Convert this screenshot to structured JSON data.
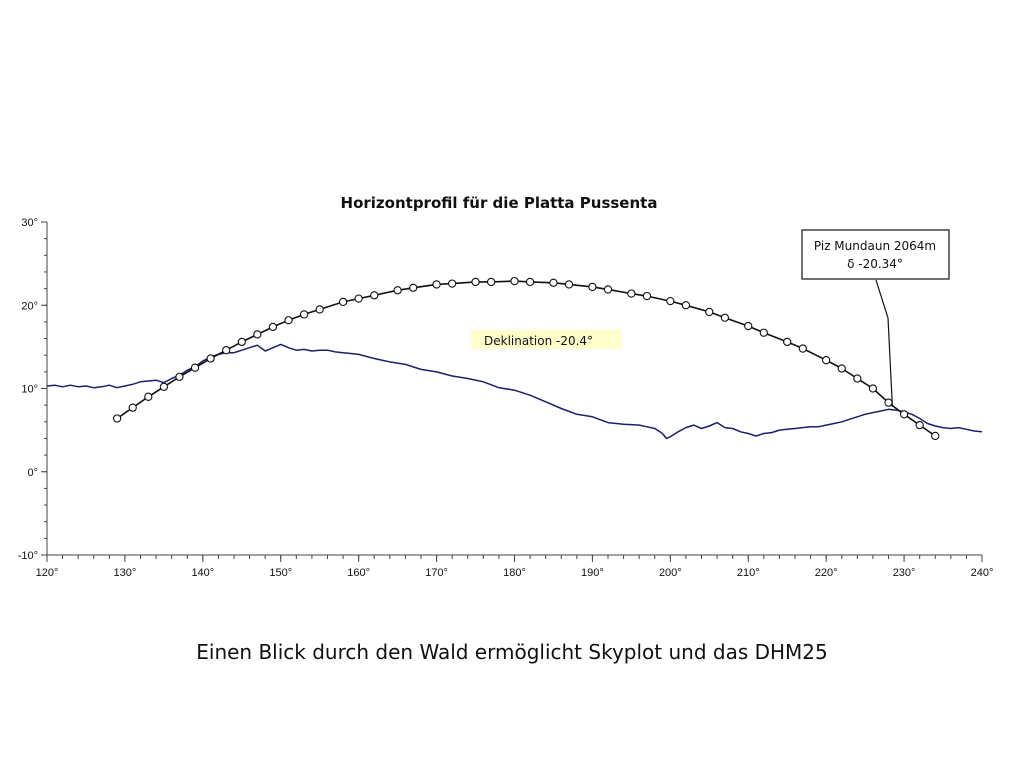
{
  "chart_data": {
    "type": "line",
    "title": "Horizontprofil für die Platta Pussenta",
    "xlabel": "",
    "ylabel": "",
    "xlim": [
      120,
      240
    ],
    "ylim": [
      -10,
      30
    ],
    "x_ticks": [
      "120°",
      "130°",
      "140°",
      "150°",
      "160°",
      "170°",
      "180°",
      "190°",
      "200°",
      "210°",
      "220°",
      "230°",
      "240°"
    ],
    "x_tick_values": [
      120,
      130,
      140,
      150,
      160,
      170,
      180,
      190,
      200,
      210,
      220,
      230,
      240
    ],
    "y_ticks": [
      "30°",
      "20°",
      "10°",
      "0°",
      "-10°"
    ],
    "y_tick_values": [
      30,
      20,
      10,
      0,
      -10
    ],
    "grid": false,
    "series": [
      {
        "color": "#1a1f6e",
        "markers": false,
        "x": [
          120,
          121,
          122,
          123,
          124,
          125,
          126,
          127,
          128,
          129,
          130,
          131,
          132,
          133,
          134,
          135,
          136,
          137,
          138,
          139,
          140,
          141,
          142,
          143,
          144,
          145,
          146,
          147,
          148,
          149,
          150,
          151,
          152,
          153,
          154,
          155,
          156,
          157,
          158,
          159,
          160,
          162,
          164,
          166,
          168,
          170,
          172,
          174,
          176,
          178,
          180,
          182,
          184,
          186,
          188,
          190,
          192,
          194,
          196,
          197,
          198,
          199,
          199.5,
          200,
          201,
          202,
          203,
          204,
          205,
          206,
          207,
          208,
          209,
          210,
          211,
          212,
          213,
          214,
          215,
          216,
          217,
          218,
          219,
          220,
          221,
          222,
          223,
          224,
          225,
          226,
          227,
          228,
          229,
          230,
          231,
          232,
          233,
          234,
          235,
          236,
          237,
          238,
          239,
          240
        ],
        "values": [
          10.3,
          10.4,
          10.2,
          10.4,
          10.2,
          10.3,
          10.1,
          10.2,
          10.4,
          10.1,
          10.3,
          10.5,
          10.8,
          10.9,
          11.0,
          10.7,
          11.2,
          11.6,
          12.2,
          12.6,
          13.3,
          13.8,
          14.1,
          14.3,
          14.3,
          14.6,
          14.9,
          15.2,
          14.5,
          14.9,
          15.3,
          14.9,
          14.6,
          14.7,
          14.5,
          14.6,
          14.6,
          14.4,
          14.3,
          14.2,
          14.1,
          13.6,
          13.2,
          12.9,
          12.3,
          12.0,
          11.5,
          11.2,
          10.8,
          10.1,
          9.8,
          9.2,
          8.4,
          7.6,
          6.9,
          6.6,
          5.9,
          5.7,
          5.6,
          5.4,
          5.2,
          4.6,
          4.0,
          4.2,
          4.8,
          5.3,
          5.6,
          5.2,
          5.5,
          5.9,
          5.3,
          5.2,
          4.8,
          4.6,
          4.3,
          4.6,
          4.7,
          5.0,
          5.1,
          5.2,
          5.3,
          5.4,
          5.4,
          5.6,
          5.8,
          6.0,
          6.3,
          6.6,
          6.9,
          7.1,
          7.3,
          7.5,
          7.4,
          7.2,
          6.9,
          6.4,
          5.8,
          5.5,
          5.3,
          5.2,
          5.3,
          5.1,
          4.9,
          4.8
        ]
      },
      {
        "color": "#111111",
        "markers": true,
        "x": [
          129,
          131,
          133,
          135,
          137,
          139,
          141,
          143,
          145,
          147,
          149,
          151,
          153,
          155,
          158,
          160,
          162,
          165,
          167,
          170,
          172,
          175,
          177,
          180,
          182,
          185,
          187,
          190,
          192,
          195,
          197,
          200,
          202,
          205,
          207,
          210,
          212,
          215,
          217,
          220,
          222,
          224,
          226,
          228,
          230,
          232,
          234
        ],
        "values": [
          6.4,
          7.7,
          9.0,
          10.2,
          11.4,
          12.5,
          13.6,
          14.6,
          15.6,
          16.5,
          17.4,
          18.2,
          18.9,
          19.5,
          20.4,
          20.8,
          21.2,
          21.8,
          22.1,
          22.5,
          22.6,
          22.8,
          22.8,
          22.9,
          22.8,
          22.7,
          22.5,
          22.2,
          21.9,
          21.4,
          21.1,
          20.5,
          20.0,
          19.2,
          18.5,
          17.5,
          16.7,
          15.6,
          14.8,
          13.4,
          12.4,
          11.2,
          10.0,
          8.3,
          6.9,
          5.6,
          4.3
        ]
      }
    ],
    "annotations": [
      {
        "text": "Deklination -20.4°",
        "background": "#ffffcc"
      },
      {
        "lines": [
          "Piz Mundaun 2064m",
          "δ -20.34°"
        ],
        "pointer_x": 228.5,
        "pointer_y": 7.8
      }
    ]
  },
  "caption": "Einen Blick durch den Wald ermöglicht Skyplot und das DHM25"
}
